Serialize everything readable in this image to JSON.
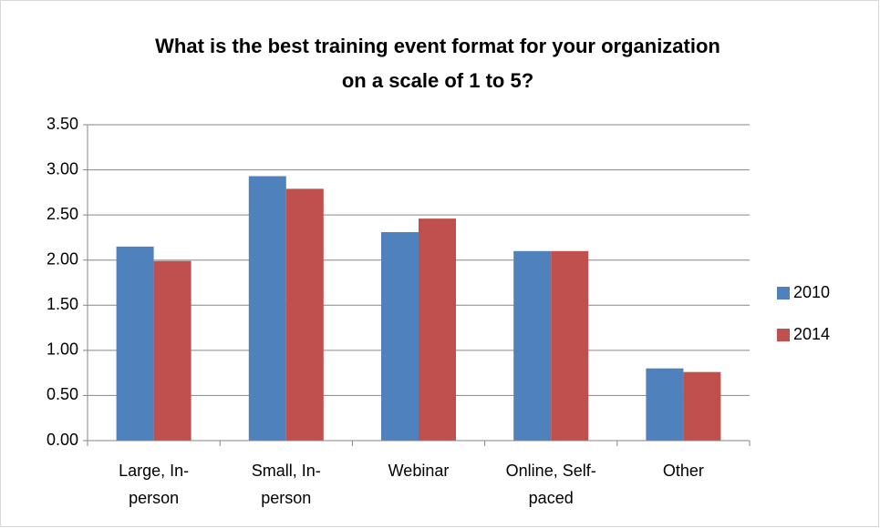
{
  "chart_data": {
    "type": "bar",
    "title": "What is the best training event format for your organization on a scale of 1 to 5?",
    "categories": [
      "Large, In-person",
      "Small, In-person",
      "Webinar",
      "Online, Self-paced",
      "Other"
    ],
    "series": [
      {
        "name": "2010",
        "color": "#4f81bd",
        "values": [
          2.15,
          2.93,
          2.31,
          2.1,
          0.8
        ]
      },
      {
        "name": "2014",
        "color": "#c0504d",
        "values": [
          1.99,
          2.79,
          2.46,
          2.1,
          0.76
        ]
      }
    ],
    "ylim": [
      0,
      3.5
    ],
    "yticks": [
      {
        "value": 0,
        "label": "0.00"
      },
      {
        "value": 0.5,
        "label": "0.50"
      },
      {
        "value": 1,
        "label": "1.00"
      },
      {
        "value": 1.5,
        "label": "1.50"
      },
      {
        "value": 2,
        "label": "2.00"
      },
      {
        "value": 2.5,
        "label": "2.50"
      },
      {
        "value": 3,
        "label": "3.00"
      },
      {
        "value": 3.5,
        "label": "3.50"
      }
    ],
    "grid": true,
    "legend": "right"
  }
}
